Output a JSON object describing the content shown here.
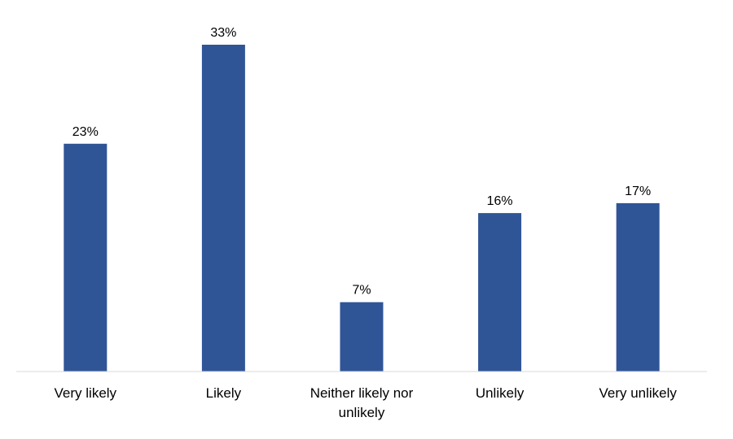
{
  "chart_data": {
    "type": "bar",
    "title": "",
    "xlabel": "",
    "ylabel": "",
    "categories": [
      [
        "Very likely"
      ],
      [
        "Likely"
      ],
      [
        "Neither likely nor",
        "unlikely"
      ],
      [
        "Unlikely"
      ],
      [
        "Very unlikely"
      ]
    ],
    "values": [
      23,
      33,
      7,
      16,
      17
    ],
    "data_labels": [
      "23%",
      "33%",
      "7%",
      "16%",
      "17%"
    ],
    "unit": "%",
    "ylim": [
      0,
      35
    ],
    "grid": false,
    "legend": "none",
    "colors": {
      "bar": "#2F5597",
      "axis": "#d9d9d9"
    }
  }
}
